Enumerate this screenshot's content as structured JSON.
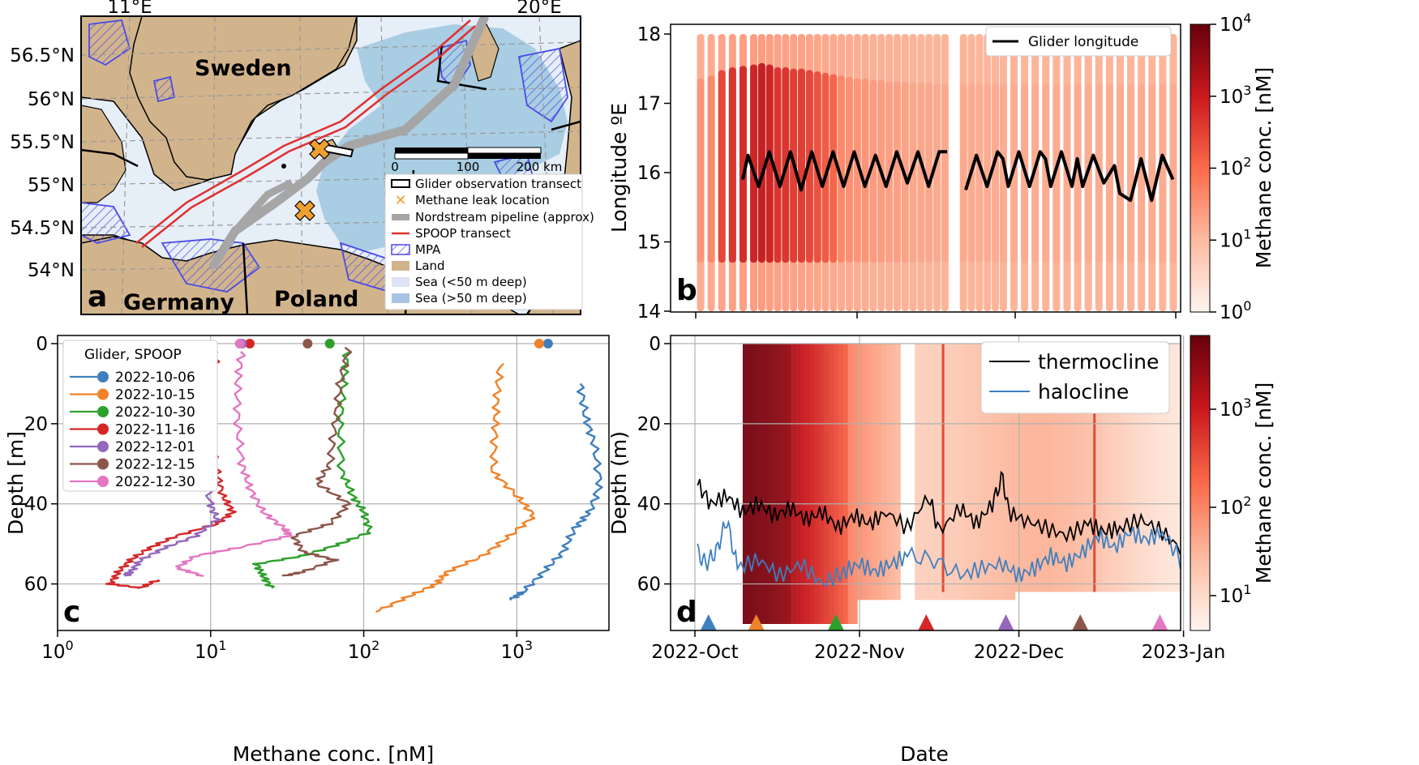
{
  "colors": {
    "land": "#d2b48c",
    "sea_shallow": "#e6eef8",
    "sea_deep": "#a9cde2",
    "mpa": "#4a4ae6",
    "spoop": "#e03030",
    "pipeline": "#a6a6a6",
    "leak": "#f0a030",
    "methane_low": "#fde8df",
    "methane_high": "#7f0612",
    "halocline": "#3f7fbf"
  },
  "panel_labels": [
    "a",
    "b",
    "c",
    "d"
  ],
  "map": {
    "lon_ticks": [
      "11°E",
      "20°E"
    ],
    "lat_ticks": [
      "56.5°N",
      "56°N",
      "55.5°N",
      "55°N",
      "54.5°N",
      "54°N"
    ],
    "countries": [
      "Sweden",
      "Germany",
      "Poland"
    ],
    "scalebar": [
      "0",
      "100",
      "200 km"
    ],
    "legend": [
      {
        "label": "Glider observation transect",
        "icon": "outlined-bar"
      },
      {
        "label": "Methane leak location",
        "icon": "x-marker"
      },
      {
        "label": "Nordstream pipeline (approx)",
        "icon": "grey-line"
      },
      {
        "label": "SPOOP transect",
        "icon": "red-line"
      },
      {
        "label": "MPA",
        "icon": "hatched-box"
      },
      {
        "label": "Land",
        "icon": "tan-box"
      },
      {
        "label": "Sea (<50 m deep)",
        "icon": "light-box"
      },
      {
        "label": "Sea (>50 m deep)",
        "icon": "blue-box"
      }
    ]
  },
  "chart_data": [
    {
      "panel": "b",
      "type": "heatmap",
      "xlabel": "",
      "ylabel": "Longitude ºE",
      "yticks": [
        "14",
        "15",
        "16",
        "17",
        "18"
      ],
      "ylim": [
        14,
        18
      ],
      "colorbar_label": "Methane conc. [nM]",
      "colorbar_ticks": [
        "10^0",
        "10^1",
        "10^2",
        "10^3",
        "10^4"
      ],
      "legend": [
        "Glider longitude"
      ],
      "legend_position": "top-right",
      "transects": [
        {
          "day": 1,
          "peak": 0.4
        },
        {
          "day": 3,
          "peak": 0.5
        },
        {
          "day": 5,
          "peak": 0.7
        },
        {
          "day": 7,
          "peak": 0.8
        },
        {
          "day": 9,
          "peak": 0.85
        },
        {
          "day": 11,
          "peak": 0.9
        },
        {
          "day": 12.5,
          "peak": 0.95
        },
        {
          "day": 14,
          "peak": 0.9
        },
        {
          "day": 15.5,
          "peak": 0.8
        },
        {
          "day": 17,
          "peak": 0.8
        },
        {
          "day": 18.5,
          "peak": 0.75
        },
        {
          "day": 20,
          "peak": 0.75
        },
        {
          "day": 21.5,
          "peak": 0.7
        },
        {
          "day": 23,
          "peak": 0.65
        },
        {
          "day": 24.5,
          "peak": 0.6
        },
        {
          "day": 26,
          "peak": 0.55
        },
        {
          "day": 27.5,
          "peak": 0.5
        },
        {
          "day": 29,
          "peak": 0.45
        },
        {
          "day": 30.5,
          "peak": 0.4
        },
        {
          "day": 32,
          "peak": 0.4
        },
        {
          "day": 33.5,
          "peak": 0.35
        },
        {
          "day": 35,
          "peak": 0.35
        },
        {
          "day": 36.5,
          "peak": 0.3
        },
        {
          "day": 38,
          "peak": 0.3
        },
        {
          "day": 39.5,
          "peak": 0.28
        },
        {
          "day": 41,
          "peak": 0.25
        },
        {
          "day": 42.5,
          "peak": 0.25
        },
        {
          "day": 44,
          "peak": 0.25
        },
        {
          "day": 45.5,
          "peak": 0.22
        },
        {
          "day": 47,
          "peak": 0.22
        },
        {
          "day": 50.5,
          "peak": 0.22
        },
        {
          "day": 52,
          "peak": 0.22
        },
        {
          "day": 53.5,
          "peak": 0.2
        },
        {
          "day": 55,
          "peak": 0.2
        },
        {
          "day": 56.5,
          "peak": 0.2
        },
        {
          "day": 58,
          "peak": 0.2
        },
        {
          "day": 60,
          "peak": 0.2
        },
        {
          "day": 62,
          "peak": 0.2
        },
        {
          "day": 64,
          "peak": 0.2
        },
        {
          "day": 66,
          "peak": 0.2
        },
        {
          "day": 68,
          "peak": 0.2
        },
        {
          "day": 70,
          "peak": 0.2
        },
        {
          "day": 72,
          "peak": 0.2
        },
        {
          "day": 74,
          "peak": 0.2
        },
        {
          "day": 76,
          "peak": 0.2
        },
        {
          "day": 78,
          "peak": 0.2
        },
        {
          "day": 80,
          "peak": 0.2
        },
        {
          "day": 82,
          "peak": 0.2
        },
        {
          "day": 84,
          "peak": 0.2
        },
        {
          "day": 86,
          "peak": 0.2
        },
        {
          "day": 88,
          "peak": 0.2
        },
        {
          "day": 90,
          "peak": 0.2
        }
      ],
      "glider_zigzag": [
        [
          9,
          15.9
        ],
        [
          10,
          16.25
        ],
        [
          12,
          15.8
        ],
        [
          14,
          16.3
        ],
        [
          16,
          15.8
        ],
        [
          18,
          16.3
        ],
        [
          20,
          15.75
        ],
        [
          22,
          16.3
        ],
        [
          24,
          15.8
        ],
        [
          26,
          16.3
        ],
        [
          28,
          15.8
        ],
        [
          30,
          16.3
        ],
        [
          32,
          15.8
        ],
        [
          34,
          16.25
        ],
        [
          36,
          15.8
        ],
        [
          38,
          16.3
        ],
        [
          40,
          15.85
        ],
        [
          42,
          16.3
        ],
        [
          44,
          15.8
        ],
        [
          46,
          16.3
        ],
        [
          47.5,
          16.3
        ],
        [
          51,
          15.75
        ],
        [
          53,
          16.25
        ],
        [
          55,
          15.8
        ],
        [
          57,
          16.3
        ],
        [
          58,
          16.2
        ],
        [
          59,
          15.8
        ],
        [
          61,
          16.3
        ],
        [
          63,
          15.8
        ],
        [
          65,
          16.3
        ],
        [
          66,
          16.2
        ],
        [
          67,
          15.8
        ],
        [
          69,
          16.3
        ],
        [
          71,
          15.8
        ],
        [
          72,
          16.2
        ],
        [
          73,
          15.8
        ],
        [
          75,
          16.25
        ],
        [
          77,
          15.85
        ],
        [
          79,
          16.1
        ],
        [
          80,
          15.7
        ],
        [
          82,
          15.6
        ],
        [
          84,
          16.2
        ],
        [
          86,
          15.6
        ],
        [
          88,
          16.25
        ],
        [
          90,
          15.9
        ]
      ]
    },
    {
      "panel": "c",
      "type": "line",
      "xlabel": "Methane conc. [nM]",
      "ylabel": "Depth [m]",
      "xscale": "log",
      "xlim": [
        1,
        4000
      ],
      "xticks": [
        "10^0",
        "10^1",
        "10^2",
        "10^3"
      ],
      "yticks": [
        "0",
        "20",
        "40",
        "60"
      ],
      "ylim": [
        0,
        70
      ],
      "legend_title": "Glider, SPOOP",
      "legend_position": "upper-left",
      "series": [
        {
          "name": "2022-10-06",
          "color": "#3f7fbf",
          "spoop": 1600,
          "points": [
            [
              2600,
              10
            ],
            [
              2800,
              18
            ],
            [
              3200,
              25
            ],
            [
              3500,
              35
            ],
            [
              3000,
              42
            ],
            [
              2400,
              46
            ],
            [
              2000,
              52
            ],
            [
              1500,
              57
            ],
            [
              1100,
              62
            ],
            [
              900,
              64
            ]
          ]
        },
        {
          "name": "2022-10-15",
          "color": "#f0822a",
          "spoop": 1400,
          "points": [
            [
              780,
              5
            ],
            [
              740,
              14
            ],
            [
              720,
              22
            ],
            [
              700,
              32
            ],
            [
              1000,
              38
            ],
            [
              1300,
              43
            ],
            [
              900,
              48
            ],
            [
              600,
              53
            ],
            [
              350,
              57
            ],
            [
              300,
              60
            ],
            [
              200,
              63
            ],
            [
              120,
              67
            ]
          ]
        },
        {
          "name": "2022-10-30",
          "color": "#2ca02c",
          "spoop": 60,
          "points": [
            [
              78,
              2
            ],
            [
              74,
              10
            ],
            [
              70,
              20
            ],
            [
              72,
              32
            ],
            [
              85,
              38
            ],
            [
              100,
              42
            ],
            [
              110,
              47
            ],
            [
              70,
              50
            ],
            [
              40,
              53
            ],
            [
              20,
              55
            ],
            [
              22,
              58
            ],
            [
              25,
              61
            ]
          ]
        },
        {
          "name": "2022-11-16",
          "color": "#d62728",
          "spoop": 18,
          "points": [
            [
              11,
              2
            ],
            [
              10,
              12
            ],
            [
              10,
              22
            ],
            [
              11,
              32
            ],
            [
              12,
              38
            ],
            [
              14,
              42
            ],
            [
              11,
              45
            ],
            [
              6,
              48
            ],
            [
              4,
              51
            ],
            [
              3,
              54
            ],
            [
              2.5,
              57
            ],
            [
              2.2,
              60
            ],
            [
              3.5,
              61
            ],
            [
              4.5,
              59
            ]
          ]
        },
        {
          "name": "2022-12-01",
          "color": "#9467bd",
          "spoop": 16,
          "points": [
            [
              10,
              2
            ],
            [
              9,
              12
            ],
            [
              8.5,
              22
            ],
            [
              9,
              32
            ],
            [
              10,
              40
            ],
            [
              11,
              44
            ],
            [
              8,
              48
            ],
            [
              5,
              51
            ],
            [
              3.5,
              54
            ],
            [
              3,
              57
            ],
            [
              2.8,
              58
            ]
          ]
        },
        {
          "name": "2022-12-15",
          "color": "#8c564b",
          "spoop": 43,
          "points": [
            [
              80,
              1
            ],
            [
              70,
              10
            ],
            [
              65,
              20
            ],
            [
              60,
              30
            ],
            [
              50,
              35
            ],
            [
              80,
              40
            ],
            [
              60,
              45
            ],
            [
              35,
              48
            ],
            [
              40,
              52
            ],
            [
              65,
              54
            ],
            [
              40,
              57
            ],
            [
              30,
              58
            ]
          ]
        },
        {
          "name": "2022-12-30",
          "color": "#e377c2",
          "spoop": 15.5,
          "points": [
            [
              16,
              2
            ],
            [
              15,
              10
            ],
            [
              15,
              20
            ],
            [
              16,
              30
            ],
            [
              18,
              36
            ],
            [
              22,
              42
            ],
            [
              30,
              46
            ],
            [
              33,
              48
            ],
            [
              15,
              51
            ],
            [
              8,
              53
            ],
            [
              6,
              56
            ],
            [
              9,
              58
            ]
          ]
        }
      ]
    },
    {
      "panel": "d",
      "type": "heatmap",
      "xlabel": "Date",
      "ylabel": "Depth (m)",
      "xticks": [
        "2022-Oct",
        "2022-Nov",
        "2022-Dec",
        "2023-Jan"
      ],
      "yticks": [
        "0",
        "20",
        "40",
        "60"
      ],
      "ylim": [
        0,
        70
      ],
      "colorbar_label": "Methane conc. [nM]",
      "colorbar_ticks": [
        "10^1",
        "10^2",
        "10^3"
      ],
      "legend": [
        "thermocline",
        "halocline"
      ],
      "legend_position": "top-right",
      "thermocline": [
        [
          0.5,
          35
        ],
        [
          3,
          40
        ],
        [
          6,
          38
        ],
        [
          9,
          42
        ],
        [
          12,
          40
        ],
        [
          15,
          43
        ],
        [
          18,
          41
        ],
        [
          21,
          44
        ],
        [
          24,
          42
        ],
        [
          27,
          46
        ],
        [
          30,
          43
        ],
        [
          33,
          45
        ],
        [
          36,
          42
        ],
        [
          40,
          46
        ],
        [
          44,
          38
        ],
        [
          46,
          47
        ],
        [
          50,
          41
        ],
        [
          53,
          45
        ],
        [
          56,
          40
        ],
        [
          58,
          33
        ],
        [
          59,
          42
        ],
        [
          62,
          44
        ],
        [
          66,
          46
        ],
        [
          70,
          48
        ],
        [
          74,
          45
        ],
        [
          77,
          47
        ],
        [
          80,
          46
        ],
        [
          84,
          44
        ],
        [
          88,
          47
        ],
        [
          92,
          52
        ]
      ],
      "halocline": [
        [
          0.5,
          52
        ],
        [
          2,
          55
        ],
        [
          4,
          52
        ],
        [
          6,
          44
        ],
        [
          8,
          56
        ],
        [
          12,
          54
        ],
        [
          16,
          58
        ],
        [
          20,
          55
        ],
        [
          24,
          60
        ],
        [
          28,
          57
        ],
        [
          31,
          55
        ],
        [
          34,
          57
        ],
        [
          37,
          55
        ],
        [
          40,
          53
        ],
        [
          45,
          54
        ],
        [
          50,
          58
        ],
        [
          54,
          56
        ],
        [
          58,
          55
        ],
        [
          61,
          58
        ],
        [
          64,
          56
        ],
        [
          67,
          53
        ],
        [
          70,
          55
        ],
        [
          73,
          52
        ],
        [
          76,
          48
        ],
        [
          79,
          51
        ],
        [
          82,
          47
        ],
        [
          85,
          49
        ],
        [
          88,
          47
        ],
        [
          92,
          55
        ]
      ],
      "sampling_markers": [
        {
          "day": 5,
          "color": "#3f7fbf"
        },
        {
          "day": 14,
          "color": "#f0822a"
        },
        {
          "day": 29,
          "color": "#2ca02c"
        },
        {
          "day": 46,
          "color": "#d62728"
        },
        {
          "day": 61,
          "color": "#9467bd"
        },
        {
          "day": 75,
          "color": "#8c564b"
        },
        {
          "day": 90,
          "color": "#e377c2"
        }
      ]
    }
  ]
}
